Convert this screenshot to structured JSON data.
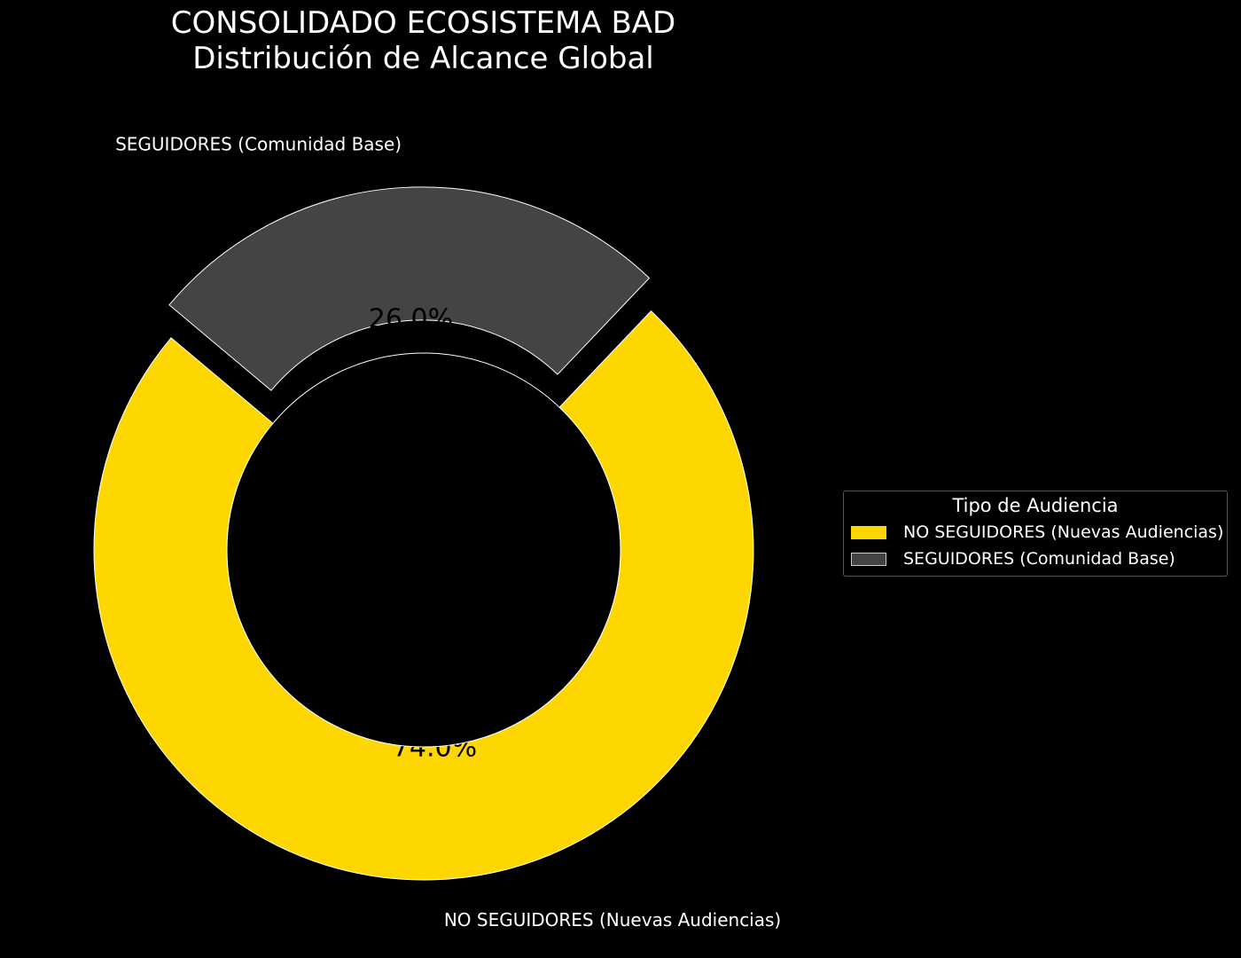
{
  "chart_data": {
    "type": "pie",
    "subtype": "donut",
    "title": "CONSOLIDADO ECOSISTEMA BAD",
    "subtitle": "Distribución de Alcance Global",
    "slices": [
      {
        "label": "NO SEGUIDORES (Nuevas Audiencias)",
        "value": 74.0,
        "pct_label": "74.0%",
        "color": "#FFD700",
        "exploded": false
      },
      {
        "label": "SEGUIDORES (Comunidad Base)",
        "value": 26.0,
        "pct_label": "26.0%",
        "color": "#444444",
        "exploded": true
      }
    ],
    "legend": {
      "title": "Tipo de Audiencia",
      "placement": "right",
      "entries": [
        "NO SEGUIDORES (Nuevas Audiencias)",
        "SEGUIDORES (Comunidad Base)"
      ]
    },
    "background": "#000000"
  }
}
